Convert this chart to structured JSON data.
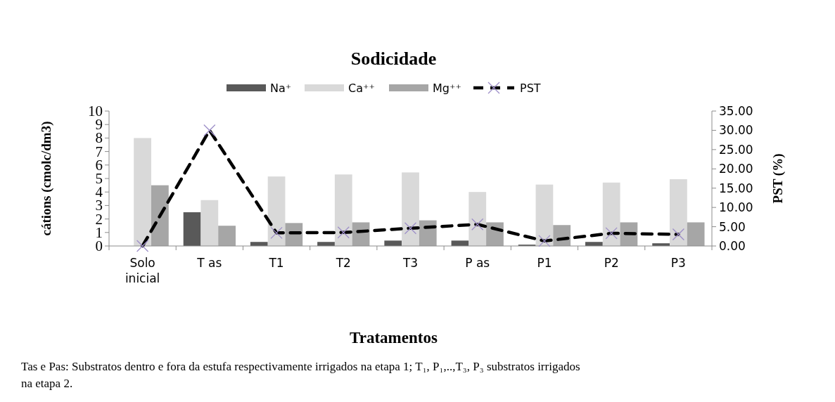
{
  "chart_data": {
    "type": "bar",
    "title": "Sodicidade",
    "xlabel": "Tratamentos",
    "ylabel": "cátions (cmolc/dm3)",
    "y2label": "PST (%)",
    "categories": [
      "Solo inicial",
      "T as",
      "T1",
      "T2",
      "T3",
      "P as",
      "P1",
      "P2",
      "P3"
    ],
    "series": [
      {
        "name": "Na⁺",
        "color": "#595959",
        "values": [
          0,
          2.5,
          0.3,
          0.3,
          0.4,
          0.4,
          0.1,
          0.3,
          0.2
        ]
      },
      {
        "name": "Ca⁺⁺",
        "color": "#d9d9d9",
        "values": [
          8.0,
          3.4,
          5.15,
          5.3,
          5.45,
          4.0,
          4.55,
          4.7,
          4.95
        ]
      },
      {
        "name": "Mg⁺⁺",
        "color": "#a6a6a6",
        "values": [
          4.5,
          1.5,
          1.7,
          1.75,
          1.9,
          1.75,
          1.55,
          1.75,
          1.75
        ]
      },
      {
        "name": "PST",
        "type": "line",
        "axis": "y2",
        "color": "#000000",
        "marker": "cross",
        "line_style": "dashed",
        "values": [
          0,
          30,
          3.4,
          3.5,
          4.6,
          5.6,
          1.3,
          3.3,
          3.0
        ]
      }
    ],
    "ylim": [
      0,
      10
    ],
    "yticks": [
      0,
      1,
      2,
      3,
      4,
      5,
      6,
      7,
      8,
      9,
      10
    ],
    "y2lim": [
      0,
      35
    ],
    "y2ticks": [
      {
        "value": 0,
        "label": "0.00"
      },
      {
        "value": 5,
        "label": "5.00"
      },
      {
        "value": 10,
        "label": "10.00"
      },
      {
        "value": 15,
        "label": "15.00"
      },
      {
        "value": 20,
        "label": "20.00"
      },
      {
        "value": 25,
        "label": "25.00"
      },
      {
        "value": 30,
        "label": "30.00"
      },
      {
        "value": 35,
        "label": "35.00"
      }
    ],
    "legend": "top",
    "grid": false,
    "annotations": [
      "Tas e Pas: Substratos dentro  e fora da estufa respectivamente irrigados na etapa 1; T₁, P₁,..,T₃, P₃ substratos irrigados na etapa 2."
    ]
  }
}
